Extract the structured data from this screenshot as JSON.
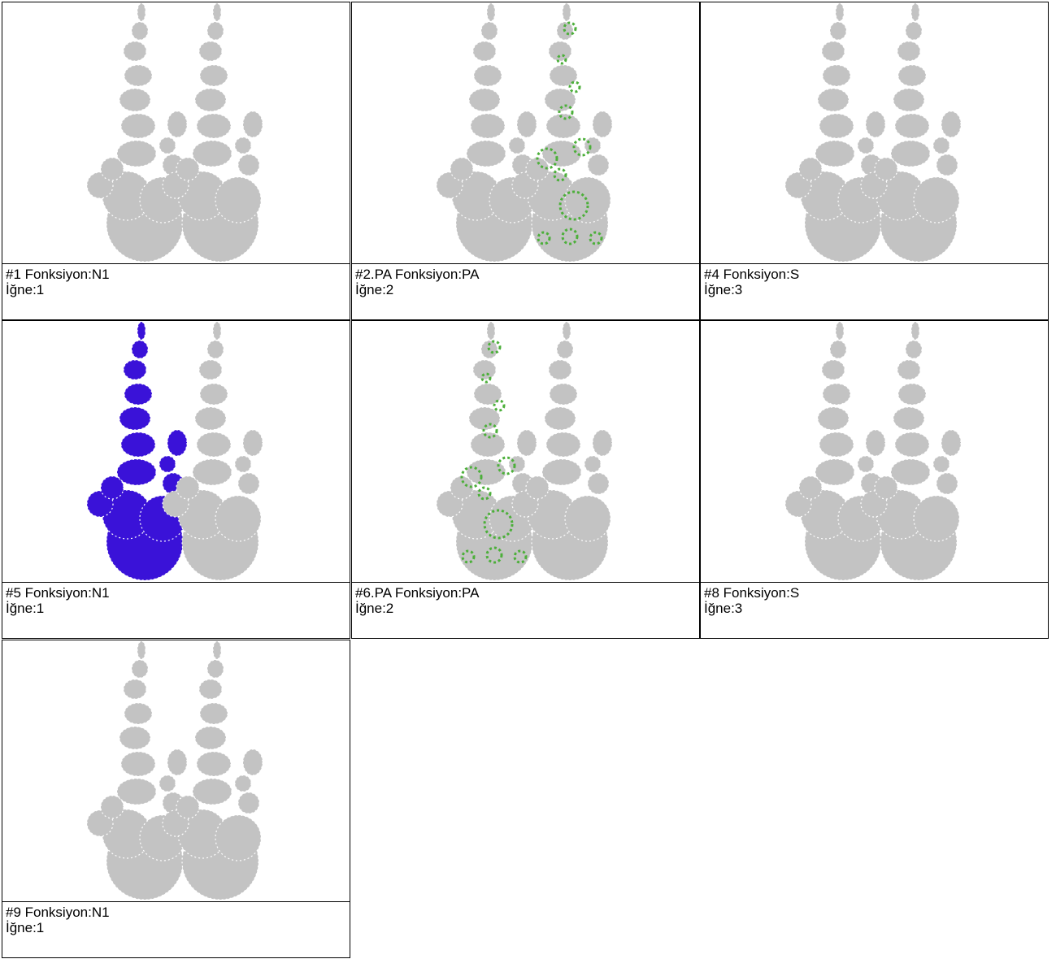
{
  "cells": [
    {
      "label": "#1 Fonksiyon:N1",
      "needle": "İğne:1"
    },
    {
      "label": "#2.PA Fonksiyon:PA",
      "needle": "İğne:2",
      "color": "#4caf3a",
      "side": "right"
    },
    {
      "label": "#4 Fonksiyon:S",
      "needle": "İğne:3"
    },
    {
      "label": "#5 Fonksiyon:N1",
      "needle": "İğne:1",
      "color": "#3a12d8",
      "side": "left"
    },
    {
      "label": "#6.PA Fonksiyon:PA",
      "needle": "İğne:2",
      "color": "#4caf3a",
      "side": "left"
    },
    {
      "label": "#8 Fonksiyon:S",
      "needle": "İğne:3"
    },
    {
      "label": "#9 Fonksiyon:N1",
      "needle": "İğne:1"
    }
  ]
}
